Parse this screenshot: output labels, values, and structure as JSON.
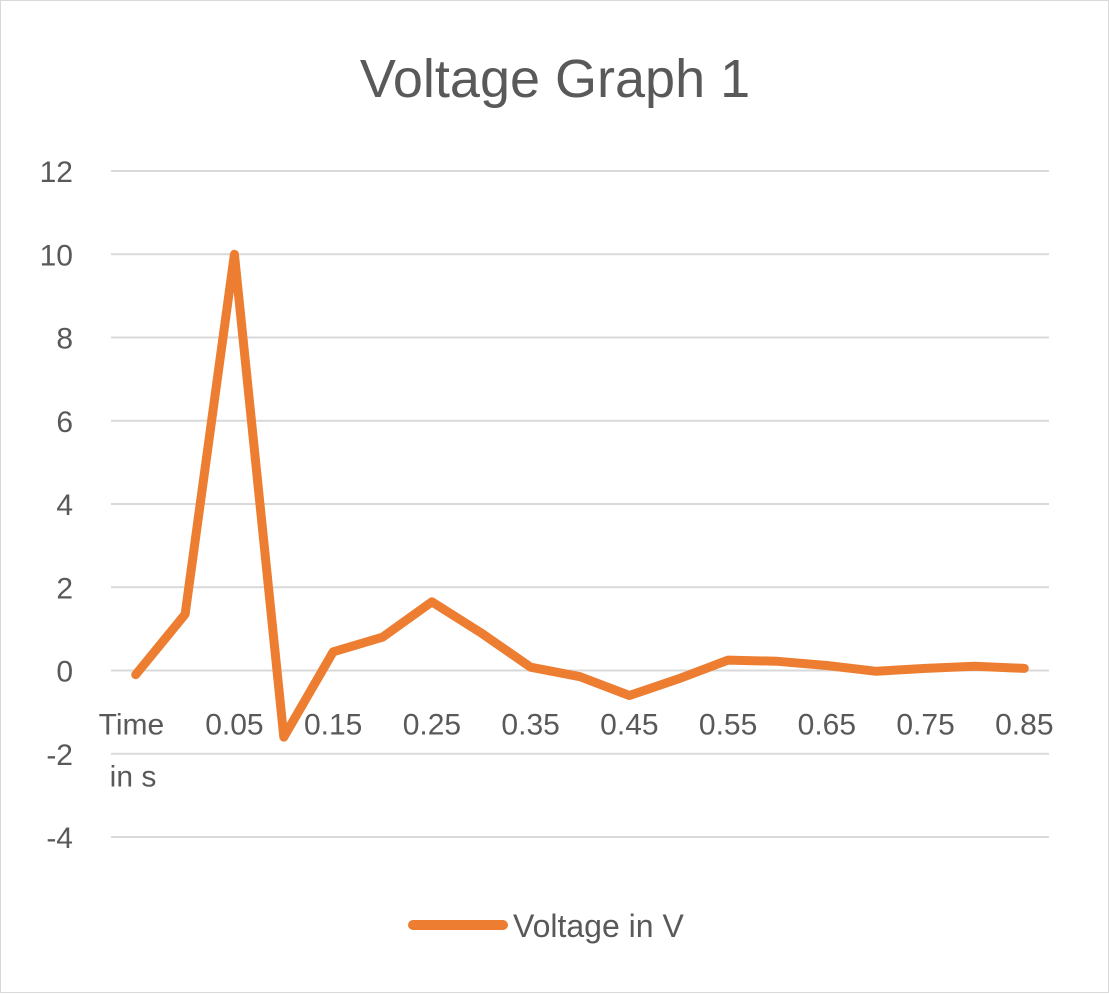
{
  "chart_data": {
    "type": "line",
    "title": "Voltage Graph 1",
    "xlabel": "",
    "ylabel": "",
    "categories": [
      "Time in s",
      "",
      "0.05",
      "",
      "0.15",
      "",
      "0.25",
      "",
      "0.35",
      "",
      "0.45",
      "",
      "0.55",
      "",
      "0.65",
      "",
      "0.75",
      "",
      "0.85"
    ],
    "x": [
      0,
      0.025,
      0.05,
      0.1,
      0.15,
      0.2,
      0.25,
      0.3,
      0.35,
      0.4,
      0.45,
      0.5,
      0.55,
      0.6,
      0.65,
      0.7,
      0.75,
      0.8,
      0.85
    ],
    "series": [
      {
        "name": "Voltage in V",
        "color": "#ED7D31",
        "values": [
          -0.1,
          1.35,
          10.0,
          -1.6,
          0.45,
          0.8,
          1.65,
          0.9,
          0.08,
          -0.15,
          -0.6,
          -0.2,
          0.25,
          0.22,
          0.12,
          -0.02,
          0.05,
          0.1,
          0.05
        ]
      }
    ],
    "yticks": [
      "-4",
      "-2",
      "0",
      "2",
      "4",
      "6",
      "8",
      "10",
      "12"
    ],
    "xticks": [
      "Time in s",
      "0.05",
      "0.15",
      "0.25",
      "0.35",
      "0.45",
      "0.55",
      "0.65",
      "0.75",
      "0.85"
    ],
    "ylim": [
      -4,
      12
    ],
    "grid": true,
    "legend_position": "bottom"
  }
}
